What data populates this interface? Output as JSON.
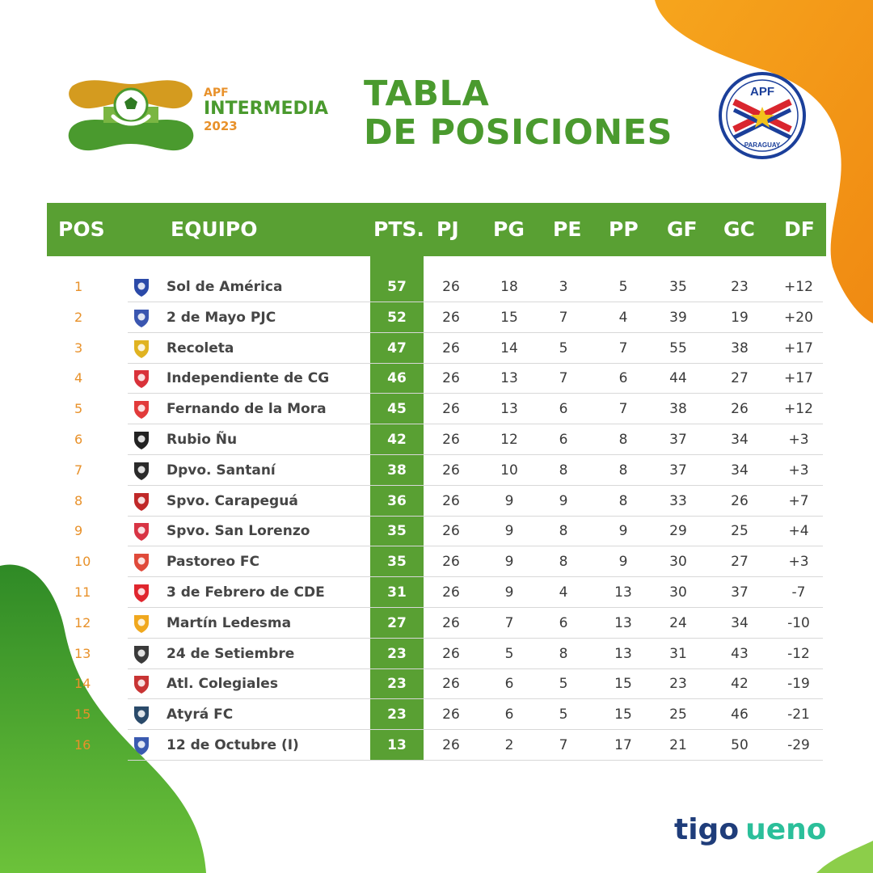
{
  "header": {
    "logo_apf": "APF",
    "logo_name": "INTERMEDIA",
    "logo_year": "2023",
    "title_line1": "TABLA",
    "title_line2": "DE POSICIONES",
    "badge_top": "APF",
    "badge_bottom": "PARAGUAY"
  },
  "columns": [
    "POS",
    "EQUIPO",
    "PTS.",
    "PJ",
    "PG",
    "PE",
    "PP",
    "GF",
    "GC",
    "DF"
  ],
  "rows": [
    {
      "pos": "1",
      "team": "Sol de América",
      "pts": "57",
      "pj": "26",
      "pg": "18",
      "pe": "3",
      "pp": "5",
      "gf": "35",
      "gc": "23",
      "df": "+12",
      "crest": "#2b4aa8"
    },
    {
      "pos": "2",
      "team": "2 de Mayo PJC",
      "pts": "52",
      "pj": "26",
      "pg": "15",
      "pe": "7",
      "pp": "4",
      "gf": "39",
      "gc": "19",
      "df": "+20",
      "crest": "#3a56b0"
    },
    {
      "pos": "3",
      "team": "Recoleta",
      "pts": "47",
      "pj": "26",
      "pg": "14",
      "pe": "5",
      "pp": "7",
      "gf": "55",
      "gc": "38",
      "df": "+17",
      "crest": "#e0b321"
    },
    {
      "pos": "4",
      "team": "Independiente de CG",
      "pts": "46",
      "pj": "26",
      "pg": "13",
      "pe": "7",
      "pp": "6",
      "gf": "44",
      "gc": "27",
      "df": "+17",
      "crest": "#d9323a"
    },
    {
      "pos": "5",
      "team": "Fernando de la Mora",
      "pts": "45",
      "pj": "26",
      "pg": "13",
      "pe": "6",
      "pp": "7",
      "gf": "38",
      "gc": "26",
      "df": "+12",
      "crest": "#e23a3a"
    },
    {
      "pos": "6",
      "team": "Rubio Ñu",
      "pts": "42",
      "pj": "26",
      "pg": "12",
      "pe": "6",
      "pp": "8",
      "gf": "37",
      "gc": "34",
      "df": "+3",
      "crest": "#222222"
    },
    {
      "pos": "7",
      "team": "Dpvo. Santaní",
      "pts": "38",
      "pj": "26",
      "pg": "10",
      "pe": "8",
      "pp": "8",
      "gf": "37",
      "gc": "34",
      "df": "+3",
      "crest": "#2a2a2a"
    },
    {
      "pos": "8",
      "team": "Spvo. Carapeguá",
      "pts": "36",
      "pj": "26",
      "pg": "9",
      "pe": "9",
      "pp": "8",
      "gf": "33",
      "gc": "26",
      "df": "+7",
      "crest": "#c02828"
    },
    {
      "pos": "9",
      "team": "Spvo. San Lorenzo",
      "pts": "35",
      "pj": "26",
      "pg": "9",
      "pe": "8",
      "pp": "9",
      "gf": "29",
      "gc": "25",
      "df": "+4",
      "crest": "#d83444"
    },
    {
      "pos": "10",
      "team": "Pastoreo FC",
      "pts": "35",
      "pj": "26",
      "pg": "9",
      "pe": "8",
      "pp": "9",
      "gf": "30",
      "gc": "27",
      "df": "+3",
      "crest": "#e04a3a"
    },
    {
      "pos": "11",
      "team": "3 de Febrero de CDE",
      "pts": "31",
      "pj": "26",
      "pg": "9",
      "pe": "4",
      "pp": "13",
      "gf": "30",
      "gc": "37",
      "df": "-7",
      "crest": "#e0262e"
    },
    {
      "pos": "12",
      "team": "Martín Ledesma",
      "pts": "27",
      "pj": "26",
      "pg": "7",
      "pe": "6",
      "pp": "13",
      "gf": "24",
      "gc": "34",
      "df": "-10",
      "crest": "#f0a81e"
    },
    {
      "pos": "13",
      "team": "24 de Setiembre",
      "pts": "23",
      "pj": "26",
      "pg": "5",
      "pe": "8",
      "pp": "13",
      "gf": "31",
      "gc": "43",
      "df": "-12",
      "crest": "#3a3a3a"
    },
    {
      "pos": "14",
      "team": "Atl. Colegiales",
      "pts": "23",
      "pj": "26",
      "pg": "6",
      "pe": "5",
      "pp": "15",
      "gf": "23",
      "gc": "42",
      "df": "-19",
      "crest": "#c83434"
    },
    {
      "pos": "15",
      "team": "Atyrá FC",
      "pts": "23",
      "pj": "26",
      "pg": "6",
      "pe": "5",
      "pp": "15",
      "gf": "25",
      "gc": "46",
      "df": "-21",
      "crest": "#2a4a6a"
    },
    {
      "pos": "16",
      "team": "12 de Octubre (I)",
      "pts": "13",
      "pj": "26",
      "pg": "2",
      "pe": "7",
      "pp": "17",
      "gf": "21",
      "gc": "50",
      "df": "-29",
      "crest": "#3a5ab0"
    }
  ],
  "sponsors": {
    "tigo": "tigo",
    "ueno": "ueno"
  },
  "colors": {
    "green": "#59a033",
    "orange": "#e8912a",
    "title_green": "#4a9a2e"
  }
}
